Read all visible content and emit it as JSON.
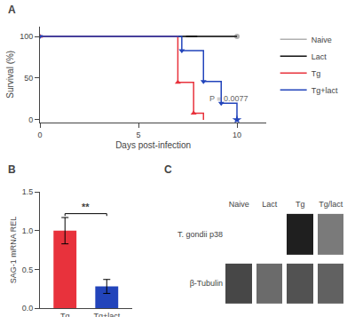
{
  "chart_data": [
    {
      "type": "line",
      "title": "A",
      "xlabel": "Days post-infection",
      "ylabel": "Survival (%)",
      "xlim": [
        0,
        11.5
      ],
      "ylim": [
        -3,
        112
      ],
      "xticks": [
        0,
        5,
        10
      ],
      "yticks": [
        0,
        50,
        100
      ],
      "grid": false,
      "legend": "upper right",
      "series": [
        {
          "name": "Naive",
          "color": "#b0b0b0",
          "x": [
            0,
            10
          ],
          "values": [
            100,
            100
          ],
          "marker": "circle",
          "marker_x": [
            10.0
          ],
          "marker_y": [
            100
          ]
        },
        {
          "name": "Lact",
          "color": "#111111",
          "x": [
            0,
            10
          ],
          "values": [
            100,
            100
          ],
          "marker": "line-ew",
          "marker_x": [
            7.7
          ],
          "marker_y": [
            100
          ]
        },
        {
          "name": "Tg",
          "color": "#e8323c",
          "x": [
            0,
            7.0,
            7.0,
            7.8,
            7.8,
            8.3,
            8.3
          ],
          "values": [
            100,
            100,
            45,
            45,
            8,
            8,
            0
          ],
          "marker": "triangle-up",
          "marker_x": [
            0,
            7.0,
            7.8
          ],
          "marker_y": [
            100,
            45,
            8
          ]
        },
        {
          "name": "Tg+lact",
          "color": "#2244bb",
          "x": [
            0,
            7.2,
            7.2,
            8.3,
            8.3,
            9.2,
            9.2,
            10.0,
            10.0,
            10.0
          ],
          "values": [
            100,
            100,
            83,
            83,
            46,
            46,
            20,
            20,
            20,
            0
          ],
          "marker": "triangle-down",
          "marker_x": [
            0,
            7.2,
            8.3,
            9.2
          ],
          "marker_y": [
            100,
            83,
            46,
            20
          ],
          "end_marker": "star",
          "end_x": [
            10.0
          ],
          "end_y": [
            0
          ]
        }
      ],
      "annotations": [
        {
          "text": "P = 0.0077",
          "x": 8.5,
          "y": 18
        }
      ]
    },
    {
      "type": "bar",
      "title": "B",
      "categories": [
        "Tg",
        "Tg+lact"
      ],
      "values": [
        1.0,
        0.28
      ],
      "errors": [
        0.17,
        0.09
      ],
      "colors": [
        "#e8323c",
        "#2244bb"
      ],
      "ylabel": "SAG-1 mRNA REL",
      "ylim": [
        0,
        1.5
      ],
      "yticks": [
        {
          "value": 0.0,
          "label": "0.0"
        },
        0.5,
        {
          "value": 1.0,
          "label": "1.0"
        },
        1.5
      ],
      "grid": false,
      "annotations": [
        {
          "text": "**",
          "y": 1.22
        }
      ]
    },
    {
      "type": "heatmap",
      "title": "C",
      "x": [
        "Naive",
        "Lact",
        "Tg",
        "Tg/lact"
      ],
      "y": [
        "T. gondii p38",
        "β-Tubulin"
      ],
      "cells": [
        [
          0,
          0,
          0.88,
          0.52
        ],
        [
          0.72,
          0.58,
          0.68,
          0.62
        ]
      ],
      "zlim": [
        0,
        1
      ]
    }
  ]
}
